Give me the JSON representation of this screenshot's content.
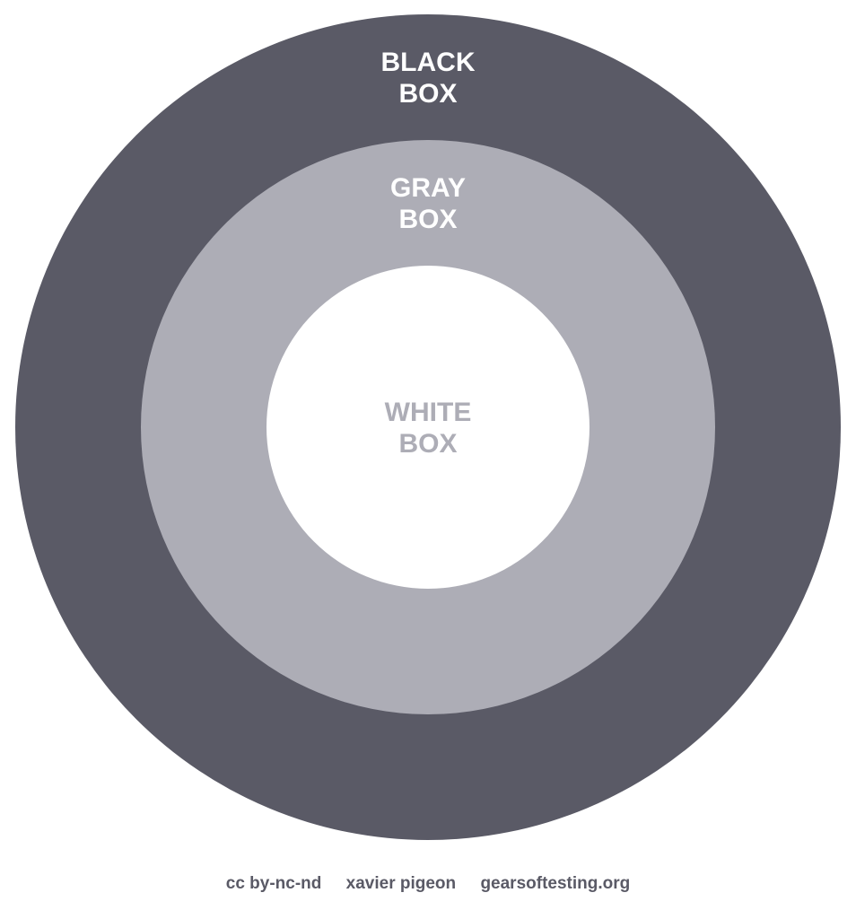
{
  "diagram": {
    "rings": [
      {
        "id": "black",
        "label_lines": [
          "BLACK",
          "BOX"
        ],
        "fill": "#5a5a66",
        "text_color": "#ffffff"
      },
      {
        "id": "gray",
        "label_lines": [
          "GRAY",
          "BOX"
        ],
        "fill": "#adadb6",
        "text_color": "#ffffff"
      },
      {
        "id": "white",
        "label_lines": [
          "WHITE",
          "BOX"
        ],
        "fill": "#ffffff",
        "text_color": "#adadb6"
      }
    ]
  },
  "footer": {
    "license": "cc by-nc-nd",
    "author": "xavier pigeon",
    "site": "gearsoftesting.org",
    "text_color": "#5a5a66"
  }
}
